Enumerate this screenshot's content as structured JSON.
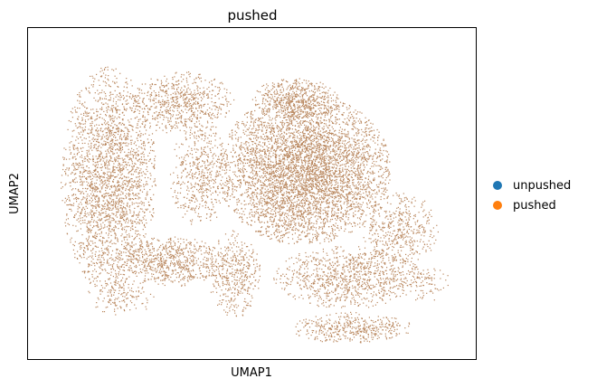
{
  "chart_data": {
    "type": "scatter",
    "title": "pushed",
    "xlabel": "UMAP1",
    "ylabel": "UMAP2",
    "x_ticks": [],
    "y_ticks": [],
    "grid": false,
    "legend": {
      "placement": "right"
    },
    "series": [
      {
        "name": "unpushed",
        "color": "#1f77b4",
        "point_count": 0
      },
      {
        "name": "pushed",
        "color": "#ff7f0e",
        "point_count": 12000
      }
    ],
    "point_color": "#b9875e",
    "clusters": [
      {
        "cx": 0.62,
        "cy": 0.42,
        "rx": 0.2,
        "ry": 0.24,
        "density": 1.6
      },
      {
        "cx": 0.6,
        "cy": 0.2,
        "rx": 0.1,
        "ry": 0.07,
        "density": 1.2
      },
      {
        "cx": 0.17,
        "cy": 0.45,
        "rx": 0.11,
        "ry": 0.36,
        "density": 1.0
      },
      {
        "cx": 0.34,
        "cy": 0.21,
        "rx": 0.12,
        "ry": 0.1,
        "density": 0.9
      },
      {
        "cx": 0.38,
        "cy": 0.44,
        "rx": 0.07,
        "ry": 0.16,
        "density": 0.7
      },
      {
        "cx": 0.31,
        "cy": 0.71,
        "rx": 0.13,
        "ry": 0.08,
        "density": 1.1
      },
      {
        "cx": 0.46,
        "cy": 0.75,
        "rx": 0.06,
        "ry": 0.14,
        "density": 0.8
      },
      {
        "cx": 0.72,
        "cy": 0.76,
        "rx": 0.17,
        "ry": 0.1,
        "density": 0.9
      },
      {
        "cx": 0.73,
        "cy": 0.92,
        "rx": 0.14,
        "ry": 0.05,
        "density": 1.0
      },
      {
        "cx": 0.84,
        "cy": 0.61,
        "rx": 0.09,
        "ry": 0.12,
        "density": 0.7
      },
      {
        "cx": 0.2,
        "cy": 0.82,
        "rx": 0.08,
        "ry": 0.06,
        "density": 0.5
      },
      {
        "cx": 0.9,
        "cy": 0.78,
        "rx": 0.06,
        "ry": 0.06,
        "density": 0.4
      }
    ]
  }
}
